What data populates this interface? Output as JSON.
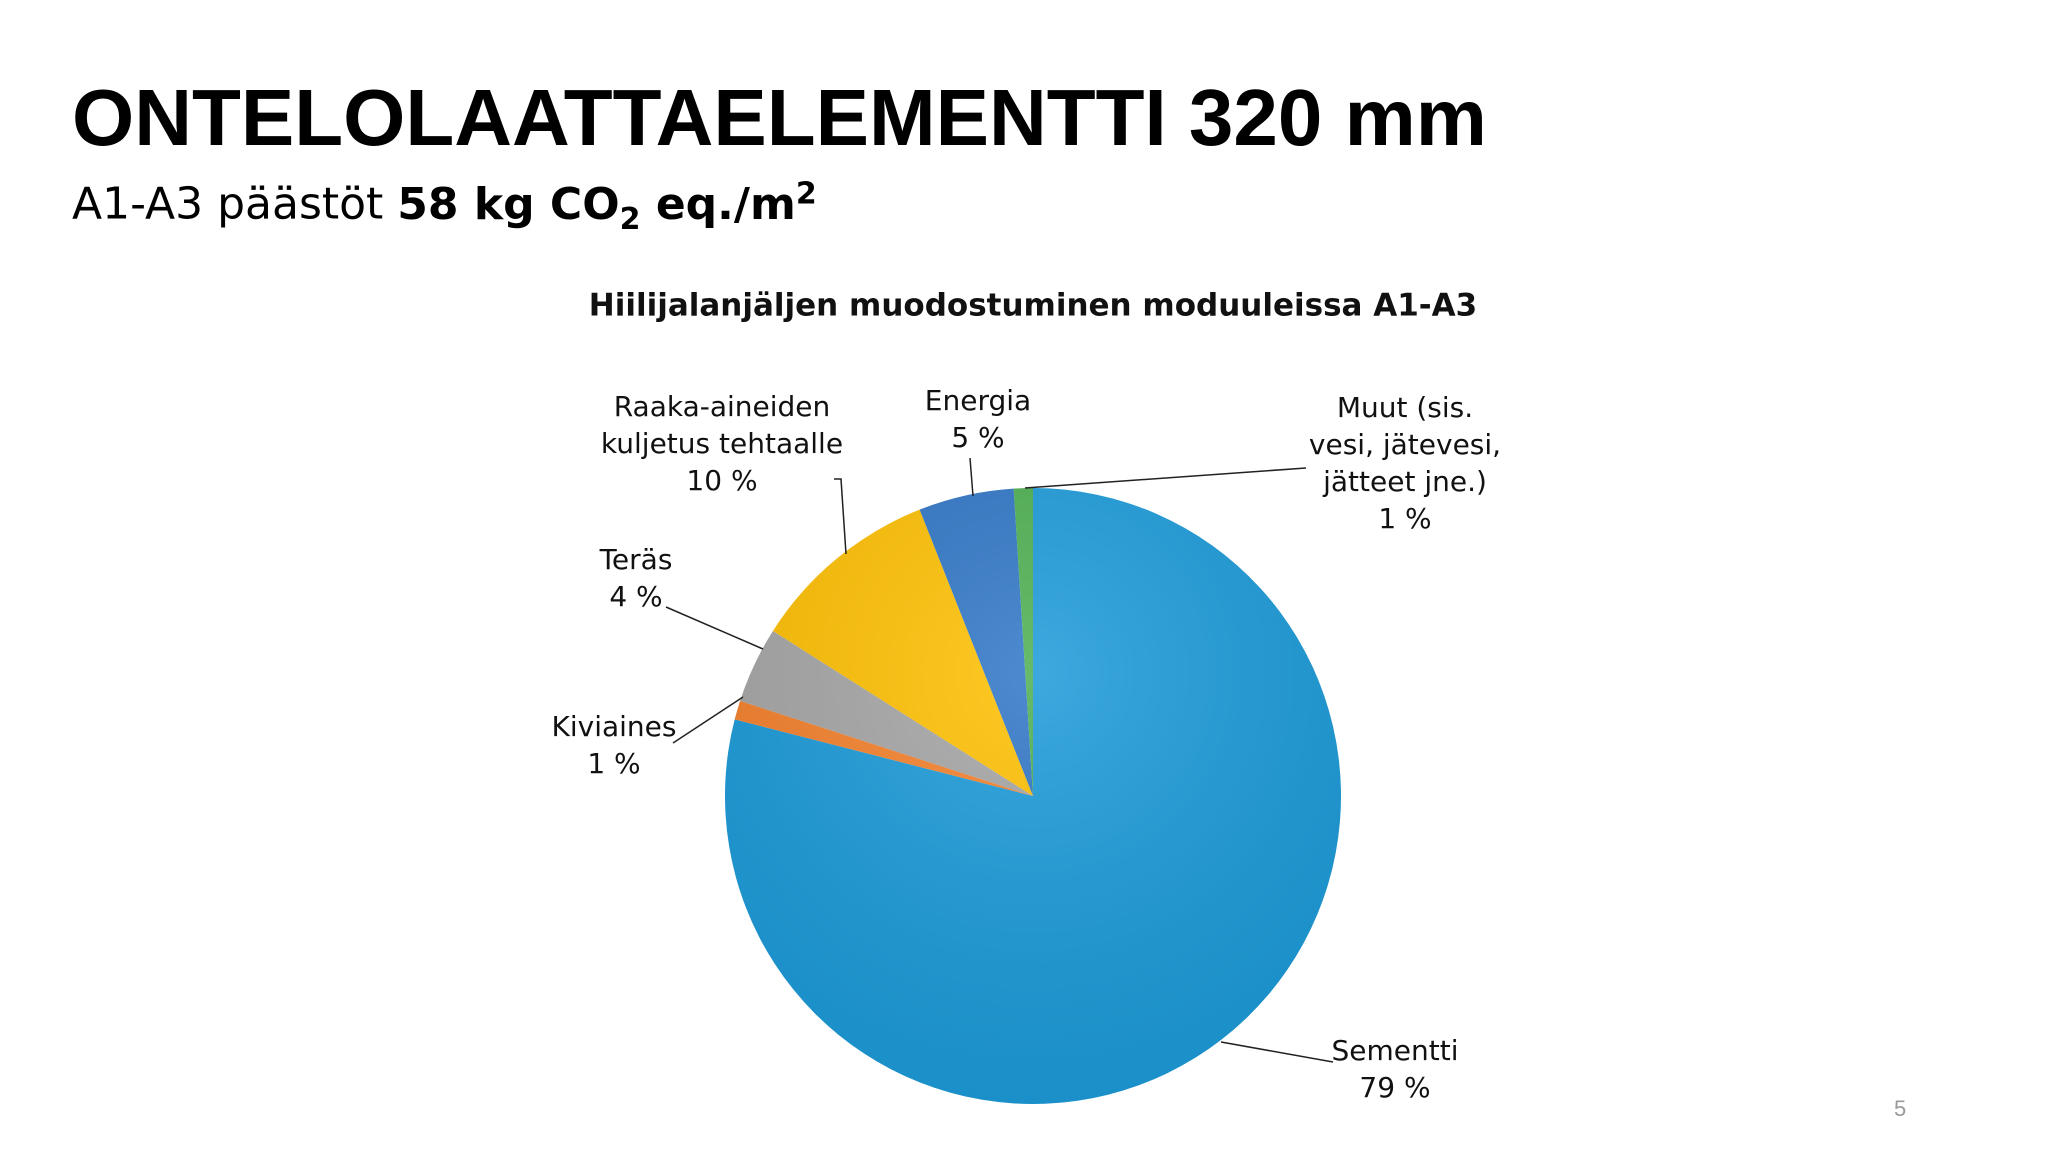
{
  "header": {
    "title": "ONTELOLAATTAELEMENTTI 320 mm",
    "subtitle": {
      "prefix": "A1-A3 päästöt",
      "amount": "58 kg CO",
      "subscript": "2",
      "unit": "eq./m",
      "superscript": "2"
    }
  },
  "chart_data": {
    "type": "pie",
    "title": "Hiilijalanjäljen muodostuminen moduuleissa A1-A3",
    "categories": [
      [
        "Sementti"
      ],
      [
        "Kiviaines"
      ],
      [
        "Teräs"
      ],
      [
        "Raaka-aineiden",
        "kuljetus tehtaalle"
      ],
      [
        "Energia"
      ],
      [
        "Muut (sis.",
        "vesi, jätevesi,",
        "jätteet jne.)"
      ]
    ],
    "values": [
      79,
      1,
      4,
      10,
      5,
      1
    ],
    "value_labels": [
      "79 %",
      "1 %",
      "4 %",
      "10 %",
      "5 %",
      "1 %"
    ],
    "colors": [
      "#1a9ad9",
      "#f4802a",
      "#a5a5a5",
      "#ffc000",
      "#2e75c6",
      "#4caf50"
    ]
  },
  "page_number": "5"
}
